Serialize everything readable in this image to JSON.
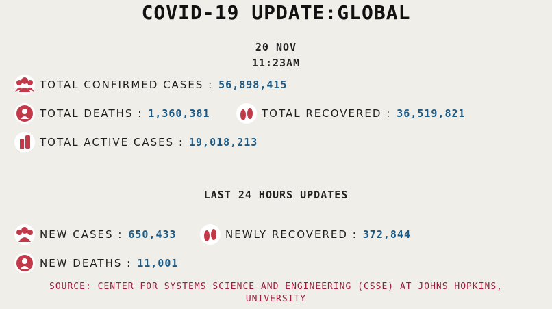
{
  "header": {
    "title": "COVID-19 UPDATE:GLOBAL",
    "date": "20 NOV",
    "time": "11:23AM"
  },
  "totals": [
    {
      "label": "TOTAL CONFIRMED CASES :",
      "value": "56,898,415"
    },
    {
      "label": "TOTAL DEATHS :",
      "value": "1,360,381"
    },
    {
      "label": "TOTAL RECOVERED :",
      "value": "36,519,821"
    },
    {
      "label": "TOTAL ACTIVE CASES :",
      "value": "19,018,213"
    }
  ],
  "last24": {
    "heading": "LAST 24 HOURS UPDATES",
    "items": [
      {
        "label": "NEW CASES :",
        "value": "650,433"
      },
      {
        "label": "NEWLY RECOVERED :",
        "value": "372,844"
      },
      {
        "label": "NEW DEATHS :",
        "value": "11,001"
      }
    ]
  },
  "source": [
    "SOURCE: CENTER FOR SYSTEMS SCIENCE AND ENGINEERING (CSSE) AT JOHNS HOPKINS,",
    "UNIVERSITY"
  ]
}
